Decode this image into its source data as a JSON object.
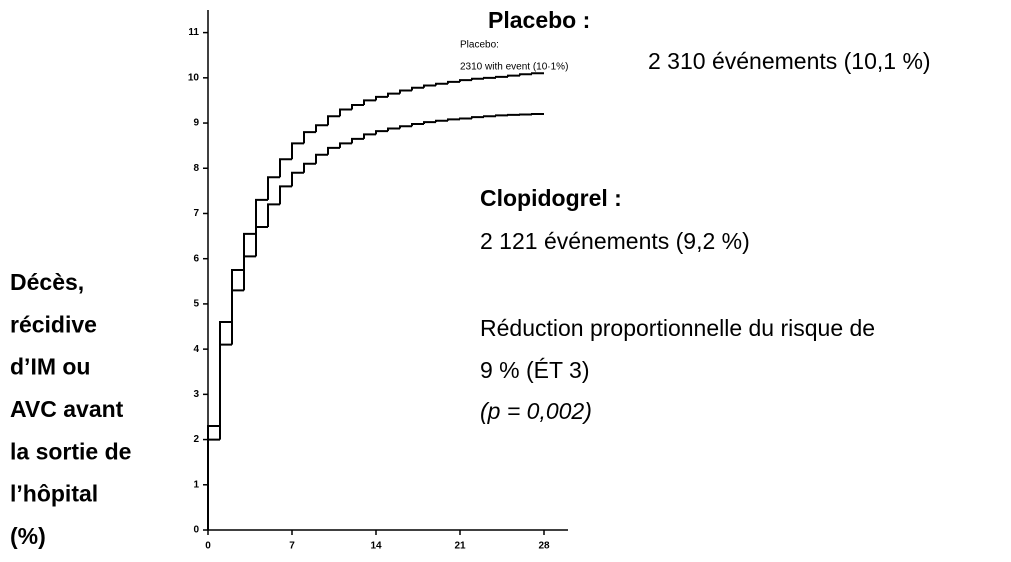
{
  "chart_data": {
    "type": "step",
    "x": [
      0,
      1,
      2,
      3,
      4,
      5,
      6,
      7,
      8,
      9,
      10,
      11,
      12,
      13,
      14,
      15,
      16,
      17,
      18,
      19,
      20,
      21,
      22,
      23,
      24,
      25,
      26,
      27
    ],
    "series": [
      {
        "color": "#000000",
        "values": [
          2.3,
          4.6,
          5.75,
          6.55,
          7.3,
          7.8,
          8.2,
          8.55,
          8.8,
          8.95,
          9.15,
          9.3,
          9.4,
          9.5,
          9.58,
          9.65,
          9.72,
          9.78,
          9.83,
          9.87,
          9.91,
          9.95,
          9.98,
          10.0,
          10.02,
          10.05,
          10.08,
          10.1
        ]
      },
      {
        "color": "#000000",
        "values": [
          2.0,
          4.1,
          5.3,
          6.05,
          6.7,
          7.2,
          7.6,
          7.9,
          8.1,
          8.3,
          8.45,
          8.55,
          8.65,
          8.75,
          8.82,
          8.88,
          8.93,
          8.98,
          9.02,
          9.05,
          9.08,
          9.1,
          9.13,
          9.15,
          9.17,
          9.18,
          9.19,
          9.2
        ]
      }
    ],
    "xlim": [
      0,
      30
    ],
    "xticks": [
      0,
      7,
      14,
      21,
      28
    ],
    "ylim": [
      0,
      11.5
    ],
    "yticks": [
      0,
      1,
      2,
      3,
      4,
      5,
      6,
      7,
      8,
      9,
      10,
      11
    ],
    "ylabel": [
      "Décès,",
      "récidive",
      "d’IM ou",
      "AVC avant",
      "la sortie de",
      "l’hôpital",
      "(%)"
    ],
    "annotations": {
      "placebo_title": "Placebo :",
      "placebo_inset": [
        "Placebo:",
        "2310 with event (10·1%)"
      ],
      "placebo_events": "2 310 événements (10,1 %)",
      "clopidogrel_title": "Clopidogrel :",
      "clopidogrel_events": "2 121 événements (9,2 %)",
      "reduction": [
        "Réduction proportionnelle du risque de",
        "9 % (ÉT 3)"
      ],
      "p_value": "(p = 0,002)"
    }
  }
}
